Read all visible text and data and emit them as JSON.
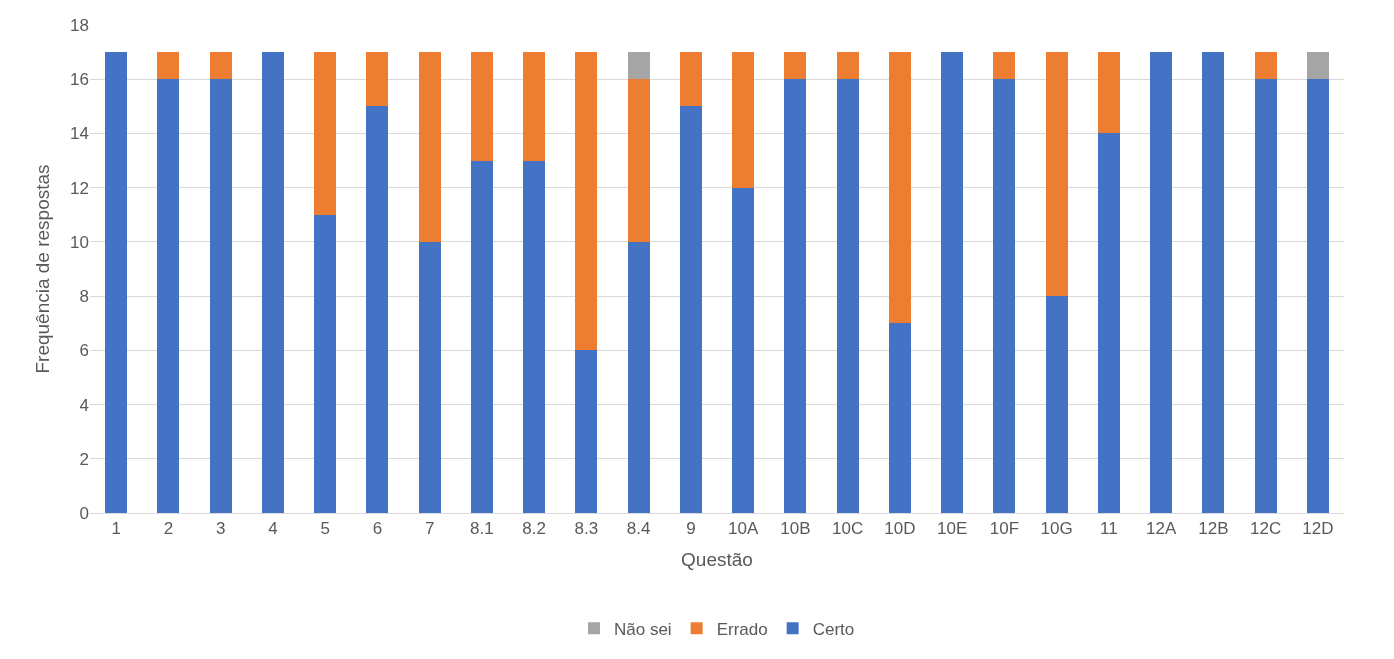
{
  "chart_data": {
    "type": "bar",
    "stacked": true,
    "xlabel": "Questão",
    "ylabel": "Frequência de respostas",
    "categories": [
      "1",
      "2",
      "3",
      "4",
      "5",
      "6",
      "7",
      "8.1",
      "8.2",
      "8.3",
      "8.4",
      "9",
      "10A",
      "10B",
      "10C",
      "10D",
      "10E",
      "10F",
      "10G",
      "11",
      "12A",
      "12B",
      "12C",
      "12D"
    ],
    "series": [
      {
        "name": "Certo",
        "color": "#4472c4",
        "values": [
          17,
          16,
          16,
          17,
          11,
          15,
          10,
          13,
          13,
          6,
          10,
          15,
          12,
          16,
          16,
          7,
          17,
          16,
          8,
          14,
          17,
          17,
          16,
          16
        ]
      },
      {
        "name": "Errado",
        "color": "#ed7d31",
        "values": [
          0,
          1,
          1,
          0,
          6,
          2,
          7,
          4,
          4,
          11,
          6,
          2,
          5,
          1,
          1,
          10,
          0,
          1,
          9,
          3,
          0,
          0,
          1,
          0
        ]
      },
      {
        "name": "Não sei",
        "color": "#a5a5a5",
        "values": [
          0,
          0,
          0,
          0,
          0,
          0,
          0,
          0,
          0,
          0,
          1,
          0,
          0,
          0,
          0,
          0,
          0,
          0,
          0,
          0,
          0,
          0,
          0,
          1
        ]
      }
    ],
    "ylim": [
      0,
      18
    ],
    "yticks": [
      0,
      2,
      4,
      6,
      8,
      10,
      12,
      14,
      16,
      18
    ],
    "grid": "y",
    "legend": "bottom"
  }
}
